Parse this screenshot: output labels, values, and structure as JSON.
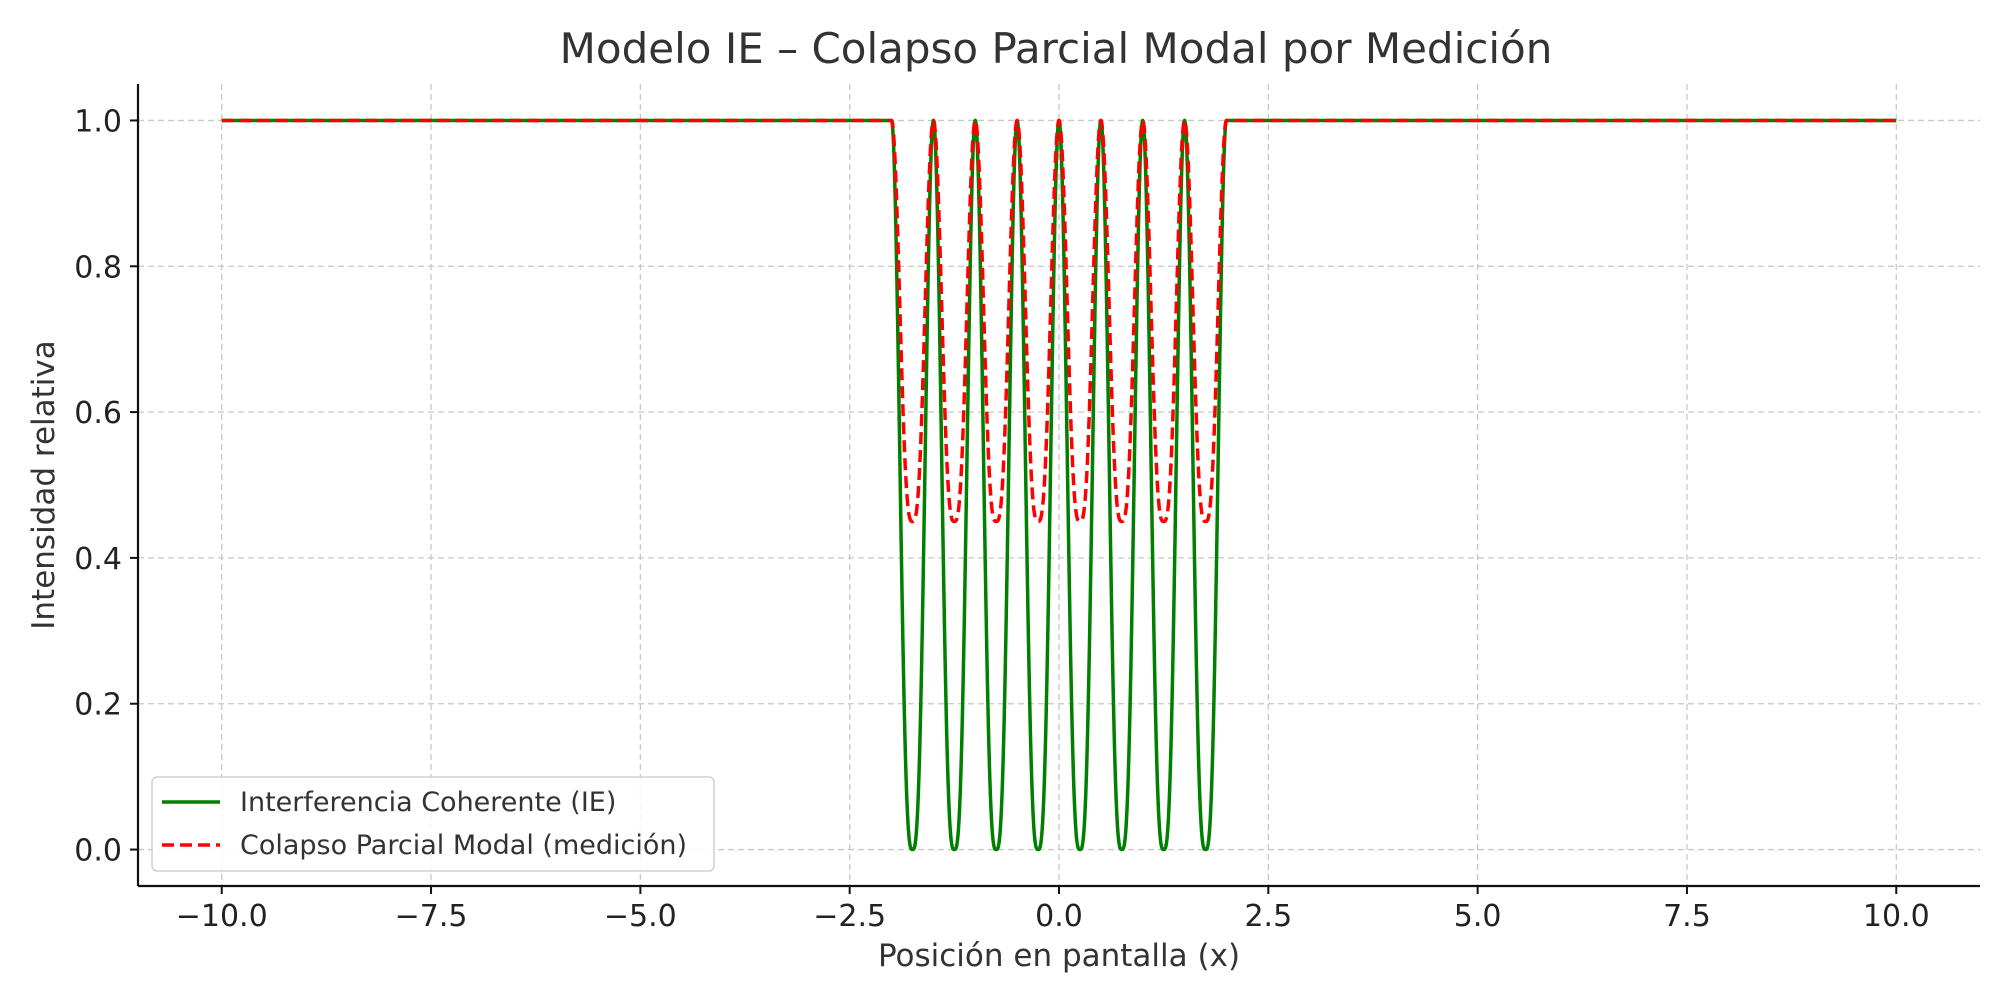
{
  "chart_data": {
    "type": "line",
    "title": "Modelo IE – Colapso Parcial Modal por Medición",
    "xlabel": "Posición en pantalla (x)",
    "ylabel": "Intensidad relativa",
    "xlim": [
      -11,
      11
    ],
    "ylim": [
      -0.05,
      1.05
    ],
    "xticks": [
      -10,
      -7.5,
      -5,
      -2.5,
      0,
      2.5,
      5,
      7.5,
      10
    ],
    "xtick_labels": [
      "−10.0",
      "−7.5",
      "−5.0",
      "−2.5",
      "0.0",
      "2.5",
      "5.0",
      "7.5",
      "10.0"
    ],
    "yticks": [
      0,
      0.2,
      0.4,
      0.6,
      0.8,
      1.0
    ],
    "ytick_labels": [
      "0.0",
      "0.2",
      "0.4",
      "0.6",
      "0.8",
      "1.0"
    ],
    "grid": true,
    "legend_position": "bottom-left",
    "fringe_region": [
      -2,
      2
    ],
    "series": [
      {
        "name": "Interferencia Coherente (IE)",
        "color": "#008000",
        "style": "solid",
        "x": [
          -10,
          -2,
          -1.75,
          -1.5,
          -1.25,
          -1,
          -0.75,
          -0.5,
          -0.25,
          0,
          0.25,
          0.5,
          0.75,
          1,
          1.25,
          1.5,
          1.75,
          2,
          10
        ],
        "y": [
          1.0,
          1.0,
          0.0,
          1.0,
          0.0,
          1.0,
          0.0,
          1.0,
          0.0,
          1.0,
          0.0,
          1.0,
          0.0,
          1.0,
          0.0,
          1.0,
          0.0,
          1.0,
          1.0
        ]
      },
      {
        "name": "Colapso Parcial Modal (medición)",
        "color": "#ff0000",
        "style": "dashed",
        "x": [
          -10,
          -2,
          -1.75,
          -1.5,
          -1.25,
          -1,
          -0.75,
          -0.5,
          -0.25,
          0,
          0.25,
          0.5,
          0.75,
          1,
          1.25,
          1.5,
          1.75,
          2,
          10
        ],
        "y": [
          1.0,
          1.0,
          0.45,
          1.0,
          0.45,
          1.0,
          0.45,
          1.0,
          0.45,
          1.0,
          0.45,
          1.0,
          0.45,
          1.0,
          0.45,
          1.0,
          0.45,
          1.0,
          1.0
        ]
      }
    ]
  }
}
